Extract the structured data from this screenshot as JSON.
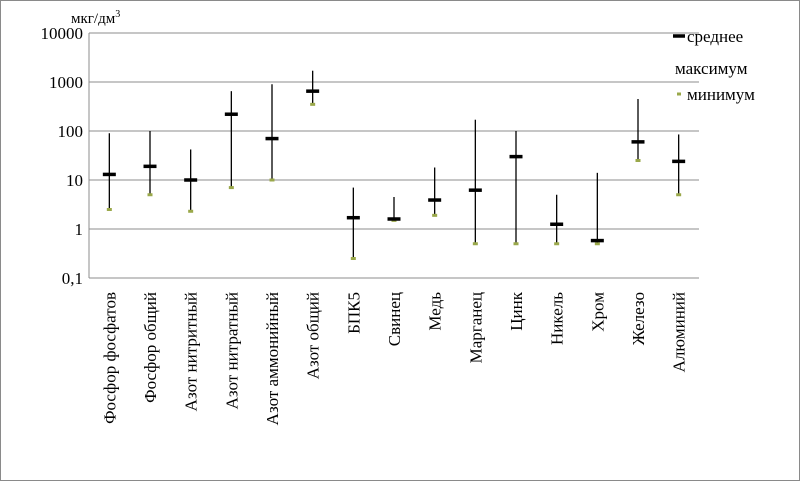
{
  "chart_data": {
    "type": "stock",
    "ylabel": "мкг/дм",
    "ylabel_sup": "3",
    "yscale": "log",
    "ylim": [
      0.1,
      10000
    ],
    "yticks": [
      0.1,
      1,
      10,
      100,
      1000,
      10000
    ],
    "ytick_labels": [
      "0,1",
      "1",
      "10",
      "100",
      "1000",
      "10000"
    ],
    "grid": "horizontal",
    "legend_position": "top-right",
    "legend": [
      {
        "key": "mean",
        "label": "среднее"
      },
      {
        "key": "max",
        "label": "максимум"
      },
      {
        "key": "min",
        "label": "минимум"
      }
    ],
    "colors": {
      "mean": "#000000",
      "max": "#000000",
      "min": "#9aa84a",
      "grid": "#8c8c8c"
    },
    "categories": [
      "Фосфор фосфатов",
      "Фосфор общий",
      "Азот нитритный",
      "Азот нитратный",
      "Азот аммонийный",
      "Азот общий",
      "БПК5",
      "Свинец",
      "Медь",
      "Марганец",
      "Цинк",
      "Никель",
      "Хром",
      "Железо",
      "Алюминий"
    ],
    "series": [
      {
        "name": "среднее",
        "key": "mean",
        "values": [
          13,
          19,
          10,
          220,
          70,
          650,
          1.7,
          1.6,
          3.9,
          6.2,
          30,
          1.25,
          0.58,
          60,
          24
        ]
      },
      {
        "name": "максимум",
        "key": "max",
        "values": [
          90,
          100,
          42,
          650,
          900,
          1700,
          7,
          4.5,
          18,
          170,
          100,
          5,
          14,
          450,
          85
        ]
      },
      {
        "name": "минимум",
        "key": "min",
        "values": [
          2.5,
          5,
          2.3,
          7,
          10,
          350,
          0.25,
          1.5,
          1.9,
          0.5,
          0.5,
          0.5,
          0.5,
          25,
          5
        ]
      }
    ]
  }
}
